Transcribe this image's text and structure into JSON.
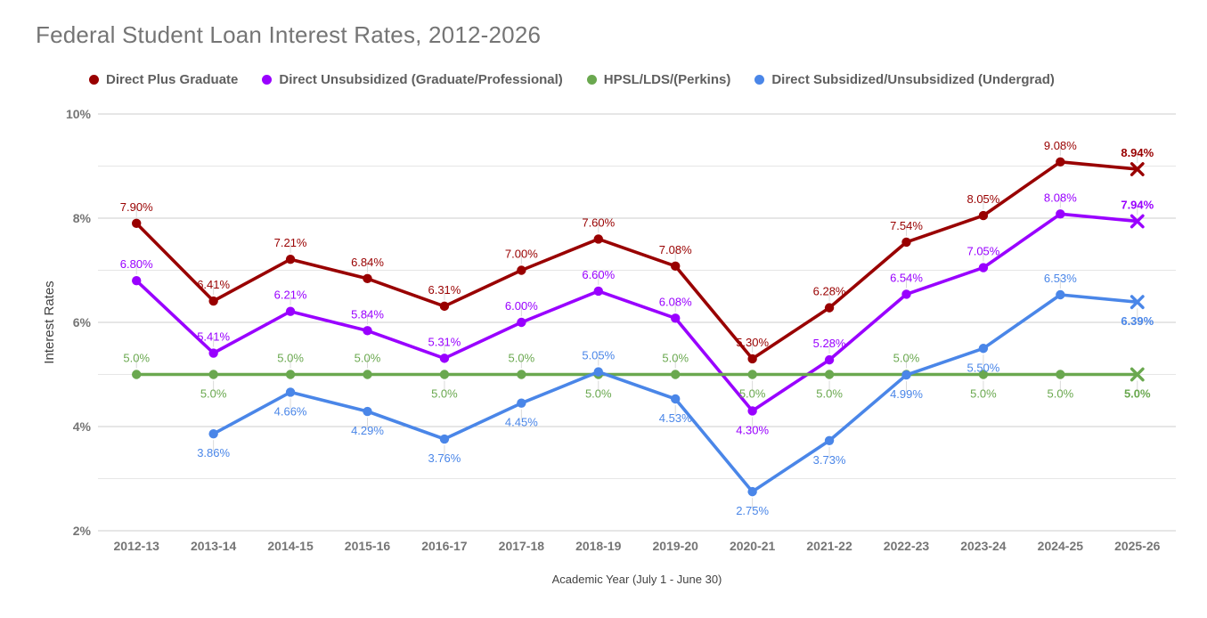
{
  "chart_data": {
    "type": "line",
    "title": "Federal Student Loan Interest Rates, 2012-2026",
    "xlabel": "Academic Year (July 1 - June 30)",
    "ylabel": "Interest Rates",
    "ylim": [
      2,
      10
    ],
    "grid": true,
    "legend_position": "top",
    "y_major_ticks": [
      {
        "value": 2,
        "label": "2%"
      },
      {
        "value": 4,
        "label": "4%"
      },
      {
        "value": 6,
        "label": "6%"
      },
      {
        "value": 8,
        "label": "8%"
      },
      {
        "value": 10,
        "label": "10%"
      }
    ],
    "y_minor_gridlines": [
      3,
      5,
      7,
      9
    ],
    "categories": [
      "2012-13",
      "2013-14",
      "2014-15",
      "2015-16",
      "2016-17",
      "2017-18",
      "2018-19",
      "2019-20",
      "2020-21",
      "2021-22",
      "2022-23",
      "2023-24",
      "2024-25",
      "2025-26"
    ],
    "series": [
      {
        "name": "Direct Plus Graduate",
        "color": "#990000",
        "marker": "circle",
        "last_marker": "x",
        "values": [
          7.9,
          6.41,
          7.21,
          6.84,
          6.31,
          7.0,
          7.6,
          7.08,
          5.3,
          6.28,
          7.54,
          8.05,
          9.08,
          8.94
        ],
        "labels": [
          "7.90%",
          "6.41%",
          "7.21%",
          "6.84%",
          "6.31%",
          "7.00%",
          "7.60%",
          "7.08%",
          "5.30%",
          "6.28%",
          "7.54%",
          "8.05%",
          "9.08%",
          "8.94%"
        ],
        "label_pos": [
          "above",
          "above",
          "above",
          "above",
          "above",
          "above",
          "above",
          "above",
          "above",
          "above",
          "above",
          "above",
          "above",
          "above"
        ]
      },
      {
        "name": "Direct Unsubsidized (Graduate/Professional)",
        "color": "#9900ff",
        "marker": "circle",
        "last_marker": "x",
        "values": [
          6.8,
          5.41,
          6.21,
          5.84,
          5.31,
          6.0,
          6.6,
          6.08,
          4.3,
          5.28,
          6.54,
          7.05,
          8.08,
          7.94
        ],
        "labels": [
          "6.80%",
          "5.41%",
          "6.21%",
          "5.84%",
          "5.31%",
          "6.00%",
          "6.60%",
          "6.08%",
          "4.30%",
          "5.28%",
          "6.54%",
          "7.05%",
          "8.08%",
          "7.94%"
        ],
        "label_pos": [
          "above",
          "above",
          "above",
          "above",
          "above",
          "above",
          "above",
          "above",
          "below",
          "above",
          "above",
          "above",
          "above",
          "above"
        ]
      },
      {
        "name": "HPSL/LDS/(Perkins)",
        "color": "#6aa84f",
        "marker": "circle",
        "last_marker": "x",
        "values": [
          5.0,
          5.0,
          5.0,
          5.0,
          5.0,
          5.0,
          5.0,
          5.0,
          5.0,
          5.0,
          5.0,
          5.0,
          5.0,
          5.0
        ],
        "labels": [
          "5.0%",
          "5.0%",
          "5.0%",
          "5.0%",
          "5.0%",
          "5.0%",
          "5.0%",
          "5.0%",
          "5.0%",
          "5.0%",
          "5.0%",
          "5.0%",
          "5.0%",
          "5.0%"
        ],
        "label_pos": [
          "above",
          "below",
          "above",
          "above",
          "below",
          "above",
          "below",
          "above",
          "below",
          "below",
          "above",
          "below",
          "below",
          "below"
        ]
      },
      {
        "name": "Direct Subsidized/Unsubsidized (Undergrad)",
        "color": "#4a86e8",
        "marker": "circle",
        "last_marker": "x",
        "values": [
          null,
          3.86,
          4.66,
          4.29,
          3.76,
          4.45,
          5.05,
          4.53,
          2.75,
          3.73,
          4.99,
          5.5,
          6.53,
          6.39
        ],
        "labels": [
          null,
          "3.86%",
          "4.66%",
          "4.29%",
          "3.76%",
          "4.45%",
          "5.05%",
          "4.53%",
          "2.75%",
          "3.73%",
          "4.99%",
          "5.50%",
          "6.53%",
          "6.39%"
        ],
        "label_pos": [
          null,
          "below",
          "below",
          "below",
          "below",
          "below",
          "above",
          "below",
          "below",
          "below",
          "below",
          "below",
          "above",
          "below"
        ]
      }
    ]
  },
  "colors": {
    "title": "#757575",
    "tick_label": "#757575",
    "axis_title": "#424242",
    "grid_major": "#cccccc",
    "grid_minor": "#e6e6e6",
    "leader": "#dadada"
  }
}
